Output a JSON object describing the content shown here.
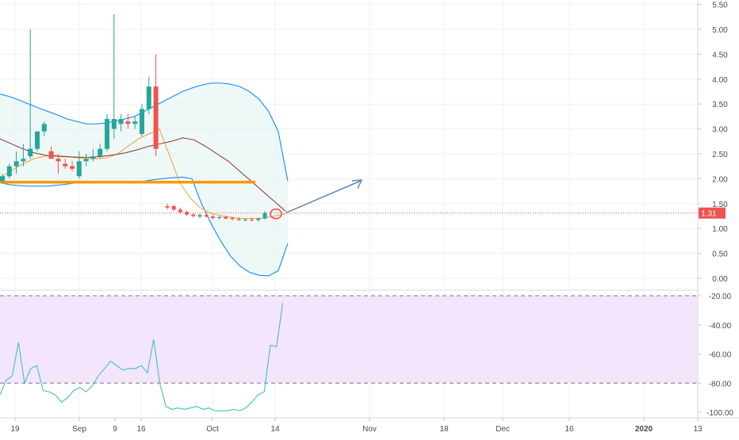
{
  "colors": {
    "up_candle": "#26a69a",
    "down_candle": "#ef5350",
    "bollinger_band": "#2196f3",
    "bollinger_fill": "#e0f2f1",
    "ema_fast": "#f7a035",
    "ma_slow": "#8b2f2f",
    "support_line": "#ff9800",
    "price_line": "#ef5350",
    "price_badge": "#ef5350",
    "arrow": "#5b8ab5",
    "circle": "#ef5350",
    "oscillator_line": "#4fc3c3",
    "oscillator_fill": "#f3e5fb",
    "oscillator_level": "#787878",
    "grid": "#eef1f4",
    "axis_text": "#4a4a4a"
  },
  "price_axis": {
    "ticks": [
      "5.50",
      "5.00",
      "4.50",
      "4.00",
      "3.50",
      "3.00",
      "2.50",
      "2.00",
      "1.50",
      "1.00",
      "0.50",
      "0.00"
    ],
    "current_price_label": "1.31"
  },
  "oscillator_axis": {
    "ticks": [
      "-20.00",
      "-40.00",
      "-60.00",
      "-80.00",
      "-100.00"
    ]
  },
  "time_axis": {
    "ticks": [
      "19",
      "Sep",
      "9",
      "16",
      "Oct",
      "14",
      "Nov",
      "18",
      "Dec",
      "16",
      "2020",
      "13"
    ],
    "highlight_tick": "2020"
  },
  "chart_data": [
    {
      "type": "candlestick",
      "ylim": [
        -0.1,
        5.6
      ],
      "current_price": 1.31,
      "support_level": 1.93,
      "candles": [
        {
          "o": 1.95,
          "h": 2.1,
          "l": 1.9,
          "c": 2.05
        },
        {
          "o": 2.05,
          "h": 2.3,
          "l": 2.0,
          "c": 2.25
        },
        {
          "o": 2.25,
          "h": 2.55,
          "l": 2.1,
          "c": 2.35
        },
        {
          "o": 2.35,
          "h": 2.7,
          "l": 2.25,
          "c": 2.4
        },
        {
          "o": 2.45,
          "h": 5.0,
          "l": 2.4,
          "c": 2.6
        },
        {
          "o": 2.6,
          "h": 2.95,
          "l": 2.55,
          "c": 2.95
        },
        {
          "o": 2.95,
          "h": 3.15,
          "l": 2.85,
          "c": 3.1
        },
        {
          "o": 2.55,
          "h": 2.65,
          "l": 2.45,
          "c": 2.4
        },
        {
          "o": 2.4,
          "h": 2.5,
          "l": 2.1,
          "c": 2.35
        },
        {
          "o": 2.3,
          "h": 2.4,
          "l": 2.2,
          "c": 2.25
        },
        {
          "o": 2.25,
          "h": 2.35,
          "l": 2.15,
          "c": 2.2
        },
        {
          "o": 2.05,
          "h": 2.55,
          "l": 2.0,
          "c": 2.35
        },
        {
          "o": 2.35,
          "h": 2.5,
          "l": 2.25,
          "c": 2.4
        },
        {
          "o": 2.4,
          "h": 2.6,
          "l": 2.35,
          "c": 2.45
        },
        {
          "o": 2.45,
          "h": 2.7,
          "l": 2.4,
          "c": 2.6
        },
        {
          "o": 2.6,
          "h": 3.3,
          "l": 2.55,
          "c": 3.2
        },
        {
          "o": 3.0,
          "h": 5.3,
          "l": 2.8,
          "c": 3.2
        },
        {
          "o": 3.1,
          "h": 3.3,
          "l": 2.95,
          "c": 3.2
        },
        {
          "o": 3.15,
          "h": 3.3,
          "l": 3.0,
          "c": 3.1
        },
        {
          "o": 3.1,
          "h": 3.25,
          "l": 3.0,
          "c": 3.15
        },
        {
          "o": 2.9,
          "h": 3.5,
          "l": 2.85,
          "c": 3.4
        },
        {
          "o": 3.4,
          "h": 4.05,
          "l": 3.3,
          "c": 3.85
        },
        {
          "o": 3.85,
          "h": 4.5,
          "l": 2.45,
          "c": 2.6
        },
        {
          "o": 1.45,
          "h": 1.5,
          "l": 1.38,
          "c": 1.42
        },
        {
          "o": 1.45,
          "h": 1.48,
          "l": 1.35,
          "c": 1.38
        },
        {
          "o": 1.38,
          "h": 1.42,
          "l": 1.3,
          "c": 1.33
        },
        {
          "o": 1.33,
          "h": 1.36,
          "l": 1.25,
          "c": 1.28
        },
        {
          "o": 1.28,
          "h": 1.32,
          "l": 1.22,
          "c": 1.25
        },
        {
          "o": 1.24,
          "h": 1.3,
          "l": 1.2,
          "c": 1.27
        },
        {
          "o": 1.27,
          "h": 1.3,
          "l": 1.22,
          "c": 1.24
        },
        {
          "o": 1.24,
          "h": 1.27,
          "l": 1.19,
          "c": 1.21
        },
        {
          "o": 1.21,
          "h": 1.25,
          "l": 1.18,
          "c": 1.23
        },
        {
          "o": 1.23,
          "h": 1.26,
          "l": 1.18,
          "c": 1.2
        },
        {
          "o": 1.21,
          "h": 1.24,
          "l": 1.16,
          "c": 1.19
        },
        {
          "o": 1.19,
          "h": 1.22,
          "l": 1.15,
          "c": 1.17
        },
        {
          "o": 1.17,
          "h": 1.2,
          "l": 1.14,
          "c": 1.18
        },
        {
          "o": 1.18,
          "h": 1.22,
          "l": 1.14,
          "c": 1.17
        },
        {
          "o": 1.17,
          "h": 1.21,
          "l": 1.14,
          "c": 1.2
        },
        {
          "o": 1.2,
          "h": 1.35,
          "l": 1.18,
          "c": 1.31
        }
      ],
      "bollinger_upper": [
        3.7,
        3.65,
        3.58,
        3.5,
        3.42,
        3.35,
        3.28,
        3.2,
        3.15,
        3.1,
        3.1,
        3.12,
        3.15,
        3.2,
        3.25,
        3.35,
        3.45,
        3.55,
        3.65,
        3.75,
        3.82,
        3.88,
        3.92,
        3.92,
        3.9,
        3.85,
        3.75,
        3.6,
        3.35,
        2.95,
        1.95
      ],
      "bollinger_lower": [
        1.92,
        1.88,
        1.86,
        1.85,
        1.85,
        1.85,
        1.87,
        1.89,
        1.92,
        1.93,
        1.93,
        1.93,
        1.92,
        1.92,
        1.93,
        1.95,
        1.98,
        2.0,
        2.02,
        2.03,
        2.0,
        1.5,
        1.1,
        0.75,
        0.45,
        0.25,
        0.12,
        0.06,
        0.05,
        0.15,
        0.7
      ],
      "ema_fast": [
        2.05,
        2.18,
        2.3,
        2.4,
        2.45,
        2.47,
        2.45,
        2.42,
        2.4,
        2.4,
        2.42,
        2.5,
        2.65,
        2.8,
        2.9,
        3.0,
        2.45,
        1.9,
        1.6,
        1.4,
        1.3,
        1.25,
        1.22,
        1.2,
        1.2,
        1.21,
        1.25,
        1.29
      ],
      "ma_slow": [
        2.8,
        2.7,
        2.6,
        2.52,
        2.47,
        2.45,
        2.44,
        2.43,
        2.43,
        2.45,
        2.48,
        2.52,
        2.58,
        2.65,
        2.7,
        2.75,
        2.82,
        2.78,
        2.65,
        2.5,
        2.35,
        2.15,
        1.95,
        1.75,
        1.55,
        1.35
      ],
      "projection": {
        "from": [
          1.33,
          0
        ],
        "to": [
          1.95,
          1
        ]
      }
    },
    {
      "type": "line",
      "ylim": [
        -102,
        -17
      ],
      "levels": [
        -20,
        -80
      ],
      "values": [
        -88,
        -78,
        -75,
        -52,
        -80,
        -70,
        -68,
        -85,
        -86,
        -88,
        -93,
        -90,
        -85,
        -83,
        -86,
        -82,
        -75,
        -70,
        -65,
        -68,
        -71,
        -70,
        -70,
        -68,
        -73,
        -50,
        -80,
        -96,
        -98,
        -97,
        -98,
        -97,
        -96,
        -98,
        -97,
        -99,
        -99,
        -99,
        -98,
        -99,
        -97,
        -93,
        -88,
        -86,
        -54,
        -55,
        -25
      ]
    }
  ]
}
